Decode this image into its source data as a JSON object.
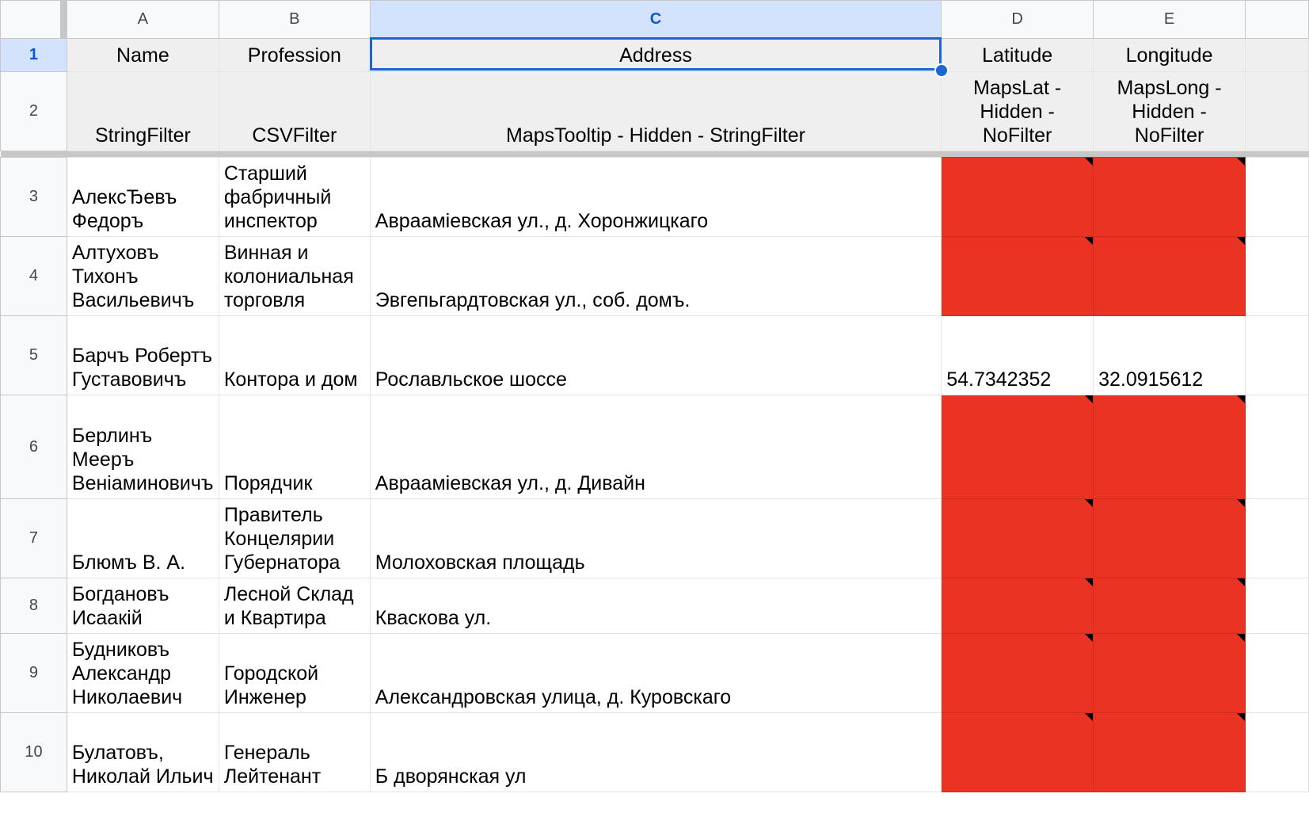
{
  "columns": [
    {
      "letter": "A"
    },
    {
      "letter": "B"
    },
    {
      "letter": "C",
      "selected": true
    },
    {
      "letter": "D"
    },
    {
      "letter": "E"
    }
  ],
  "header_row_1": {
    "row_number": "1",
    "cells": [
      "Name",
      "Profession",
      "Address",
      "Latitude",
      "Longitude"
    ]
  },
  "header_row_2": {
    "row_number": "2",
    "cells": [
      "StringFilter",
      "CSVFilter",
      "MapsTooltip - Hidden - StringFilter",
      "MapsLat - Hidden - NoFilter",
      "MapsLong - Hidden - NoFilter"
    ]
  },
  "rows": [
    {
      "n": "3",
      "name": "АлексЂевъ Федоръ",
      "profession": "Старший фабричный инспектор",
      "address": "Авраамiевская ул., д. Хоронжицкаго",
      "lat": "",
      "long": "",
      "missing": true
    },
    {
      "n": "4",
      "name": "Алтуховъ Тихонъ Васильевичъ",
      "profession": "Винная и колониальная торговля",
      "address": "Эвгепьгардтовская ул., соб. домъ.",
      "lat": "",
      "long": "",
      "missing": true
    },
    {
      "n": "5",
      "name": "Барчъ Робертъ Густавовичъ",
      "profession": "Контора и дом",
      "address": "Рославльское шоссе",
      "lat": "54.7342352",
      "long": "32.0915612",
      "missing": false
    },
    {
      "n": "6",
      "name": "Берлинъ Мееръ Веніаминовичъ",
      "profession": "Порядчик",
      "address": "Авраамiевская ул., д. Дивайн",
      "lat": "",
      "long": "",
      "missing": true
    },
    {
      "n": "7",
      "name": "Блюмъ В. А.",
      "profession": "Правитель Концелярии Губернатора",
      "address": "Молоховская площадь",
      "lat": "",
      "long": "",
      "missing": true
    },
    {
      "n": "8",
      "name": "Богдановъ Исаакій",
      "profession": "Лесной Склад и Квартира",
      "address": "Кваскова ул.",
      "lat": "",
      "long": "",
      "missing": true
    },
    {
      "n": "9",
      "name": "Будниковъ Александр Николаевич",
      "profession": "Городской Инженер",
      "address": "Александровская улица, д. Куровскаго",
      "lat": "",
      "long": "",
      "missing": true
    },
    {
      "n": "10",
      "name": "Булатовъ, Николай Ильич",
      "profession": "Генераль Лейтенант",
      "address": "Б дворянская ул",
      "lat": "",
      "long": "",
      "missing": true
    }
  ],
  "colors": {
    "missing_fill": "#ea3323",
    "selection": "#1a66d2",
    "selected_header": "#d3e3fd",
    "header_fill": "#efefef"
  }
}
